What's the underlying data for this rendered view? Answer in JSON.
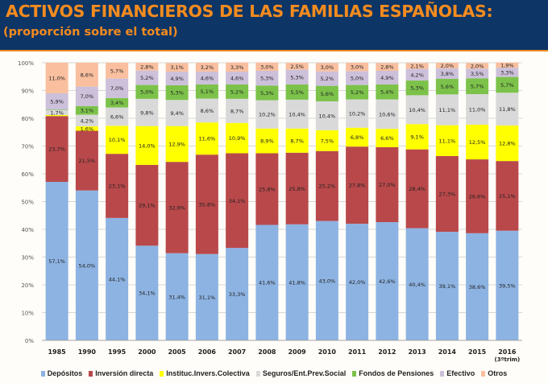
{
  "header": {
    "title": "ACTIVOS FINANCIEROS DE LAS FAMILIAS ESPAÑOLAS:",
    "subtitle": "(proporción sobre el total)"
  },
  "chart_data": {
    "type": "bar",
    "stacked": true,
    "categories": [
      "1985",
      "1990",
      "1995",
      "2000",
      "2005",
      "2006",
      "2007",
      "2008",
      "2009",
      "2010",
      "2011",
      "2012",
      "2013",
      "2014",
      "2015",
      "2016"
    ],
    "category_sublabels": {
      "2016": "(3ºtrim)"
    },
    "ylim": [
      0,
      100
    ],
    "yticks": [
      "0%",
      "10%",
      "20%",
      "30%",
      "40%",
      "50%",
      "60%",
      "70%",
      "80%",
      "90%",
      "100%"
    ],
    "grid": true,
    "legend_position": "bottom",
    "series": [
      {
        "name": "Depósitos",
        "color": "#8db3e2",
        "values": [
          57.1,
          54.0,
          44.1,
          34.1,
          31.4,
          31.1,
          33.3,
          41.6,
          41.8,
          43.0,
          42.0,
          42.6,
          40.4,
          39.1,
          38.6,
          39.5
        ]
      },
      {
        "name": "Inversión directa",
        "color": "#b9484a",
        "values": [
          23.7,
          21.5,
          23.1,
          29.1,
          32.9,
          35.8,
          34.1,
          25.8,
          25.8,
          25.2,
          27.8,
          27.0,
          28.4,
          27.3,
          26.6,
          25.1
        ]
      },
      {
        "name": "Instituc.Invers.Colectiva",
        "color": "#ffff00",
        "values": [
          0.4,
          1.6,
          10.1,
          14.0,
          12.9,
          11.6,
          10.9,
          8.9,
          8.7,
          7.5,
          6.8,
          6.6,
          9.1,
          11.1,
          12.5,
          12.8
        ]
      },
      {
        "name": "Seguros/Ent.Prev.Social",
        "color": "#d9d9d9",
        "values": [
          1.7,
          4.2,
          6.6,
          9.8,
          9.4,
          8.6,
          8.7,
          10.2,
          10.4,
          10.4,
          10.2,
          10.6,
          10.4,
          11.1,
          11.0,
          11.8
        ]
      },
      {
        "name": "Fondos de Pensiones",
        "color": "#7cc24a",
        "values": [
          0.2,
          3.1,
          3.4,
          5.0,
          5.3,
          5.1,
          5.2,
          5.3,
          5.5,
          5.6,
          5.2,
          5.4,
          5.3,
          5.6,
          5.7,
          5.7
        ]
      },
      {
        "name": "Efectivo",
        "color": "#ccc0da",
        "values": [
          5.9,
          7.0,
          7.0,
          5.2,
          4.9,
          4.6,
          4.6,
          5.3,
          5.3,
          5.2,
          5.0,
          4.9,
          4.2,
          3.8,
          3.5,
          3.3
        ]
      },
      {
        "name": "Otros",
        "color": "#f9bf9f",
        "values": [
          11.0,
          8.6,
          5.7,
          2.8,
          3.1,
          3.2,
          3.3,
          3.0,
          2.5,
          3.0,
          3.0,
          2.8,
          2.1,
          2.0,
          2.0,
          1.9
        ]
      }
    ]
  }
}
